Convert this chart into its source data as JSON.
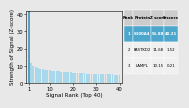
{
  "bar_color": "#a8d8ea",
  "bar_color_first": "#5b9fc0",
  "bar_heights": [
    51.88,
    11.68,
    10.15,
    9.5,
    9.0,
    8.6,
    8.3,
    8.0,
    7.8,
    7.6,
    7.4,
    7.2,
    7.0,
    6.9,
    6.8,
    6.6,
    6.5,
    6.4,
    6.3,
    6.2,
    6.1,
    6.0,
    5.9,
    5.8,
    5.75,
    5.7,
    5.65,
    5.6,
    5.55,
    5.5,
    5.45,
    5.4,
    5.35,
    5.3,
    5.25,
    5.2,
    5.15,
    5.1,
    5.05,
    5.0
  ],
  "xlim": [
    0,
    41
  ],
  "ylim": [
    0,
    42
  ],
  "xlabel": "Signal Rank (Top 40)",
  "ylabel": "Strength of Signal (Z-score)",
  "xticks": [
    1,
    10,
    20,
    30,
    40
  ],
  "yticks": [
    0,
    10,
    20,
    30,
    40
  ],
  "table_data": [
    [
      "Rank",
      "Protein",
      "Z score",
      "S-score"
    ],
    [
      "1",
      "S100A4",
      "51.88",
      "40.21"
    ],
    [
      "2",
      "FASTKD2",
      "11.68",
      "1.52"
    ],
    [
      "3",
      "LAMPL",
      "10.15",
      "0.21"
    ]
  ],
  "table_highlight_row": 1,
  "table_highlight_color": "#4da6cc",
  "table_header_color": "#cccccc",
  "table_bg_color": "#f0f0f0",
  "background_color": "#e8e8e8",
  "font_size": 4.0,
  "tick_font_size": 3.8
}
